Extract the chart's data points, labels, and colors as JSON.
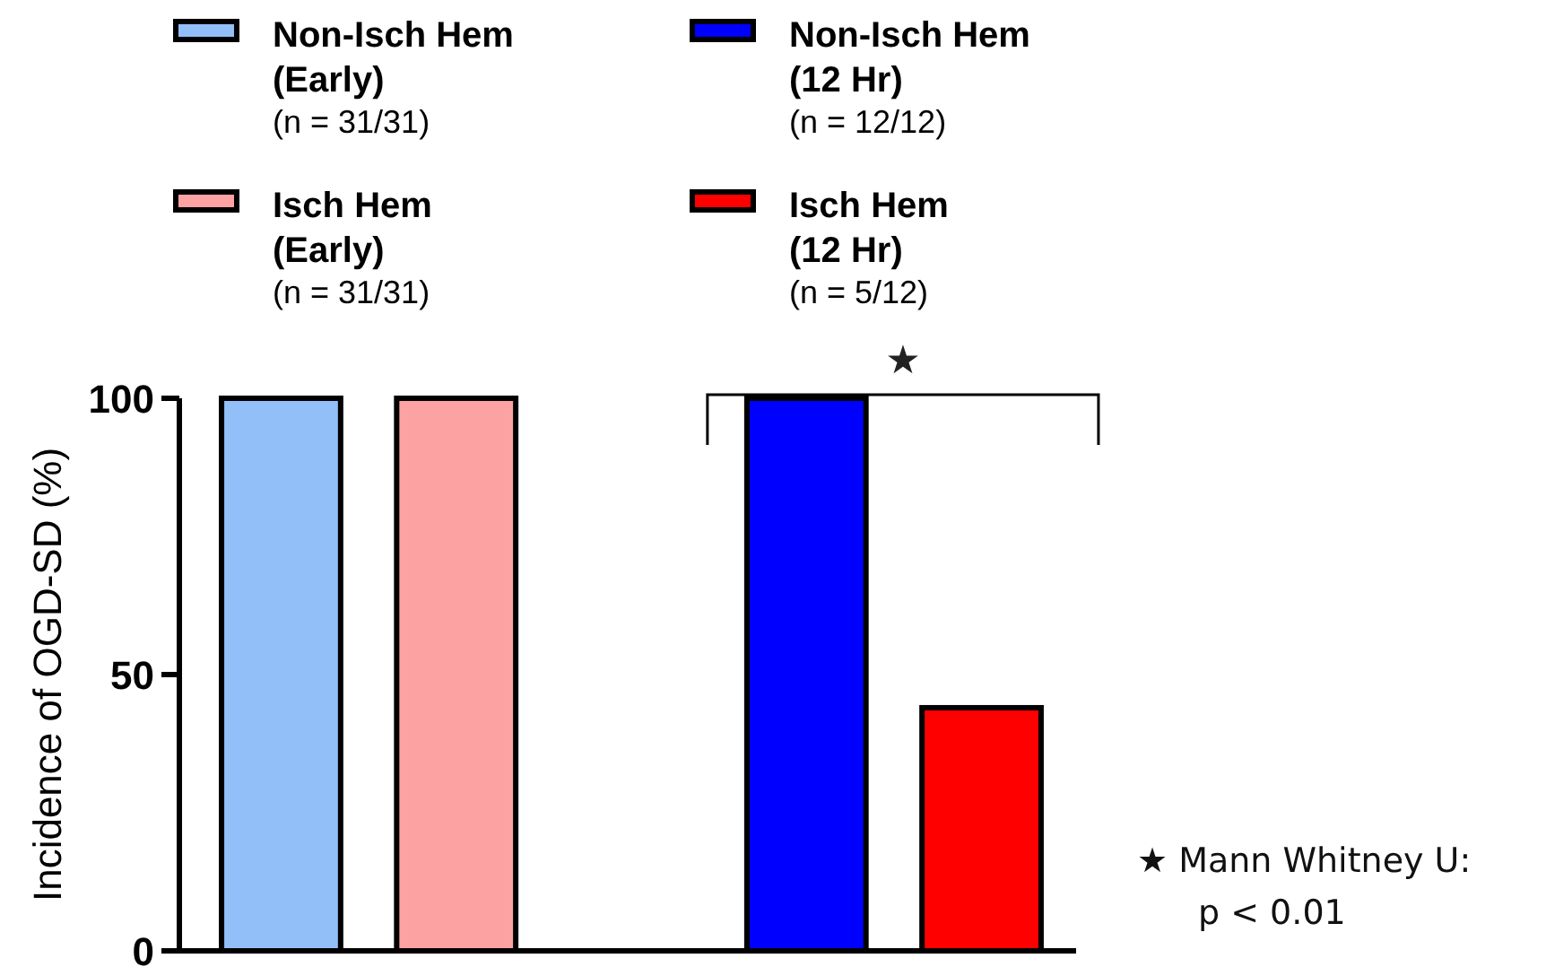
{
  "chart_data": {
    "type": "bar",
    "ylabel": "Incidence of OGD-SD (%)",
    "categories": [
      null,
      null,
      null,
      null,
      null
    ],
    "series": [
      {
        "name": "Non-Isch Hem\n(Early)\n(n = 31/31)",
        "color": "#93bff9",
        "values": [
          100,
          null,
          null,
          null,
          null
        ]
      },
      {
        "name": "Isch Hem\n(Early)\n(n = 31/31)",
        "color": "#fca2a2",
        "values": [
          null,
          100,
          null,
          null,
          null
        ]
      },
      {
        "name": "Non-Isch Hem\n(12 Hr)\n(n = 12/12)",
        "color": "#0000ff",
        "values": [
          null,
          null,
          null,
          100,
          null
        ]
      },
      {
        "name": "Isch Hem\n(12 Hr)\n(n = 5/12)",
        "color": "#ff0000",
        "values": [
          null,
          null,
          null,
          null,
          44
        ]
      }
    ],
    "ylim": [
      0,
      100
    ],
    "yticks": [
      0,
      50,
      100
    ],
    "grid": false,
    "legend": "top",
    "annotations": [
      "★",
      "★ Mann Whitney U:\np < 0.01"
    ]
  }
}
